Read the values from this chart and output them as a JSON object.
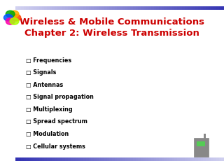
{
  "title_line1": "Wireless & Mobile Communications",
  "title_line2": "Chapter 2: Wireless Transmission",
  "title_color": "#cc0000",
  "title_fontsize": 9.5,
  "bullet_items": [
    "Frequencies",
    "Signals",
    "Antennas",
    "Signal propagation",
    "Multiplexing",
    "Spread spectrum",
    "Modulation",
    "Cellular systems"
  ],
  "bullet_color": "#000000",
  "bullet_fontsize": 5.8,
  "background_color": "#ffffff",
  "bullet_symbol": "□"
}
